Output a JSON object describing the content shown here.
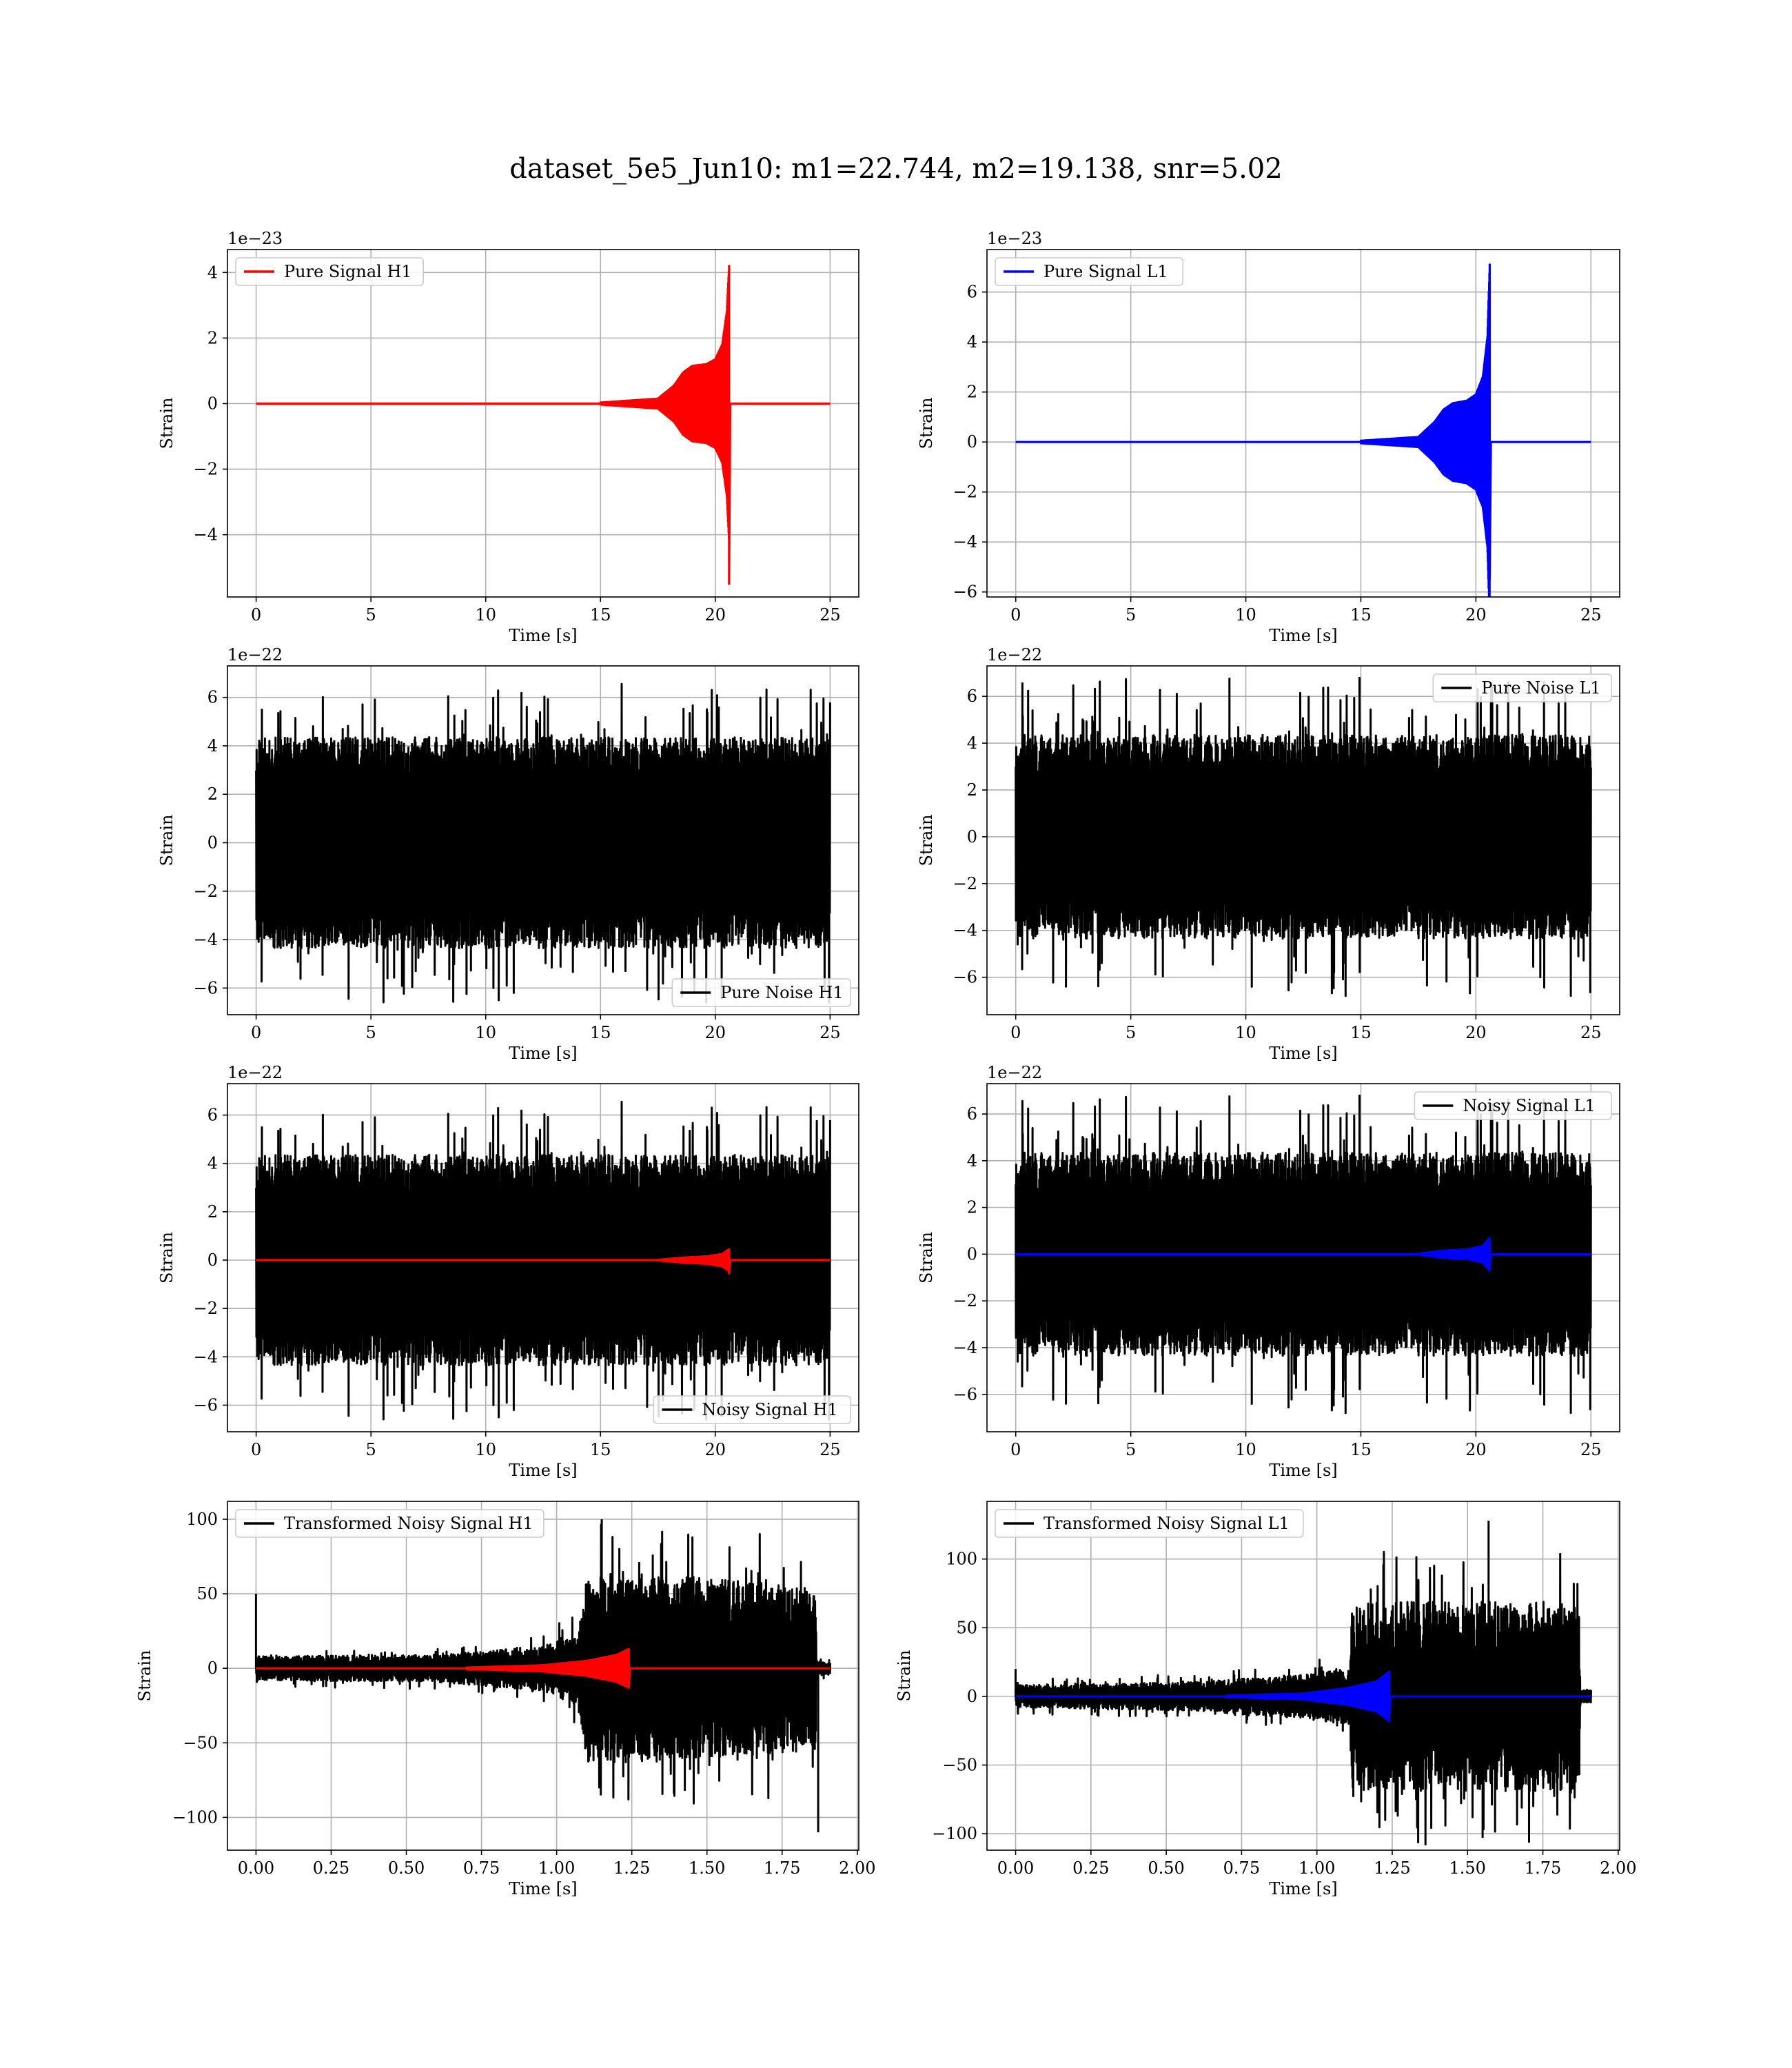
{
  "figure": {
    "suptitle": "dataset_5e5_Jun10: m1=22.744, m2=19.138, snr=5.02"
  },
  "chart_data": [
    {
      "type": "line",
      "id": "pure-signal-h1",
      "xlabel": "Time [s]",
      "ylabel": "Strain",
      "offset_label": "1e−23",
      "xlim": [
        -1.25,
        26.25
      ],
      "ylim": [
        -5.9,
        4.7
      ],
      "xticks": [
        0,
        5,
        10,
        15,
        20,
        25
      ],
      "xtick_labels": [
        "0",
        "5",
        "10",
        "15",
        "20",
        "25"
      ],
      "yticks": [
        -4,
        -2,
        0,
        2,
        4
      ],
      "ytick_labels": [
        "−4",
        "−2",
        "0",
        "2",
        "4"
      ],
      "grid": true,
      "legend_loc": "upper-left",
      "series": [
        {
          "name": "Pure Signal H1",
          "color": "#ff0000",
          "kind": "chirp",
          "x_range": [
            0,
            25
          ],
          "t_merge": 20.6,
          "envelope": [
            [
              0,
              0.0
            ],
            [
              15,
              0.03
            ],
            [
              17.5,
              0.15
            ],
            [
              18.2,
              0.55
            ],
            [
              18.6,
              0.95
            ],
            [
              19.0,
              1.15
            ],
            [
              19.6,
              1.2
            ],
            [
              20.0,
              1.35
            ],
            [
              20.3,
              1.8
            ],
            [
              20.5,
              2.8
            ],
            [
              20.6,
              4.2
            ]
          ],
          "merge_min": -5.5
        }
      ]
    },
    {
      "type": "line",
      "id": "pure-signal-l1",
      "xlabel": "Time [s]",
      "ylabel": "Strain",
      "offset_label": "1e−23",
      "xlim": [
        -1.25,
        26.25
      ],
      "ylim": [
        -6.2,
        7.7
      ],
      "xticks": [
        0,
        5,
        10,
        15,
        20,
        25
      ],
      "xtick_labels": [
        "0",
        "5",
        "10",
        "15",
        "20",
        "25"
      ],
      "yticks": [
        -6,
        -4,
        -2,
        0,
        2,
        4,
        6
      ],
      "ytick_labels": [
        "−6",
        "−4",
        "−2",
        "0",
        "2",
        "4",
        "6"
      ],
      "grid": true,
      "legend_loc": "upper-left",
      "series": [
        {
          "name": "Pure Signal L1",
          "color": "#0000ff",
          "kind": "chirp",
          "x_range": [
            0,
            25
          ],
          "t_merge": 20.6,
          "envelope": [
            [
              0,
              0.0
            ],
            [
              15,
              0.05
            ],
            [
              17.5,
              0.2
            ],
            [
              18.2,
              0.8
            ],
            [
              18.6,
              1.3
            ],
            [
              19.0,
              1.55
            ],
            [
              19.6,
              1.65
            ],
            [
              20.0,
              1.9
            ],
            [
              20.3,
              2.6
            ],
            [
              20.5,
              4.2
            ],
            [
              20.6,
              7.1
            ]
          ],
          "merge_min": -5.5
        }
      ]
    },
    {
      "type": "line",
      "id": "pure-noise-h1",
      "xlabel": "Time [s]",
      "ylabel": "Strain",
      "offset_label": "1e−22",
      "xlim": [
        -1.25,
        26.25
      ],
      "ylim": [
        -7.1,
        7.3
      ],
      "xticks": [
        0,
        5,
        10,
        15,
        20,
        25
      ],
      "xtick_labels": [
        "0",
        "5",
        "10",
        "15",
        "20",
        "25"
      ],
      "yticks": [
        -6,
        -4,
        -2,
        0,
        2,
        4,
        6
      ],
      "ytick_labels": [
        "−6",
        "−4",
        "−2",
        "0",
        "2",
        "4",
        "6"
      ],
      "grid": true,
      "legend_loc": "lower-right",
      "series": [
        {
          "name": "Pure Noise H1",
          "color": "#000000",
          "kind": "noise",
          "x_range": [
            0,
            25
          ],
          "base_amp": 3.0,
          "spike_max": 6.6,
          "seed": 11
        }
      ]
    },
    {
      "type": "line",
      "id": "pure-noise-l1",
      "xlabel": "Time [s]",
      "ylabel": "Strain",
      "offset_label": "1e−22",
      "xlim": [
        -1.25,
        26.25
      ],
      "ylim": [
        -7.6,
        7.3
      ],
      "xticks": [
        0,
        5,
        10,
        15,
        20,
        25
      ],
      "xtick_labels": [
        "0",
        "5",
        "10",
        "15",
        "20",
        "25"
      ],
      "yticks": [
        -6,
        -4,
        -2,
        0,
        2,
        4,
        6
      ],
      "ytick_labels": [
        "−6",
        "−4",
        "−2",
        "0",
        "2",
        "4",
        "6"
      ],
      "grid": true,
      "legend_loc": "upper-right",
      "series": [
        {
          "name": "Pure Noise L1",
          "color": "#000000",
          "kind": "noise",
          "x_range": [
            0,
            25
          ],
          "base_amp": 3.0,
          "spike_max": 6.8,
          "seed": 23
        }
      ]
    },
    {
      "type": "line",
      "id": "noisy-signal-h1",
      "xlabel": "Time [s]",
      "ylabel": "Strain",
      "offset_label": "1e−22",
      "xlim": [
        -1.25,
        26.25
      ],
      "ylim": [
        -7.1,
        7.3
      ],
      "xticks": [
        0,
        5,
        10,
        15,
        20,
        25
      ],
      "xtick_labels": [
        "0",
        "5",
        "10",
        "15",
        "20",
        "25"
      ],
      "yticks": [
        -6,
        -4,
        -2,
        0,
        2,
        4,
        6
      ],
      "ytick_labels": [
        "−6",
        "−4",
        "−2",
        "0",
        "2",
        "4",
        "6"
      ],
      "grid": true,
      "legend_loc": "lower-right",
      "series": [
        {
          "name": "Noisy Signal H1",
          "color": "#000000",
          "kind": "noise",
          "x_range": [
            0,
            25
          ],
          "base_amp": 3.0,
          "spike_max": 6.6,
          "seed": 11
        },
        {
          "color": "#ff0000",
          "kind": "chirp",
          "x_range": [
            0,
            25
          ],
          "t_merge": 20.6,
          "envelope": [
            [
              0,
              0.0
            ],
            [
              17.5,
              0.01
            ],
            [
              18.6,
              0.1
            ],
            [
              19.6,
              0.15
            ],
            [
              20.3,
              0.25
            ],
            [
              20.6,
              0.45
            ]
          ],
          "merge_min": -0.55
        }
      ]
    },
    {
      "type": "line",
      "id": "noisy-signal-l1",
      "xlabel": "Time [s]",
      "ylabel": "Strain",
      "offset_label": "1e−22",
      "xlim": [
        -1.25,
        26.25
      ],
      "ylim": [
        -7.6,
        7.3
      ],
      "xticks": [
        0,
        5,
        10,
        15,
        20,
        25
      ],
      "xtick_labels": [
        "0",
        "5",
        "10",
        "15",
        "20",
        "25"
      ],
      "yticks": [
        -6,
        -4,
        -2,
        0,
        2,
        4,
        6
      ],
      "ytick_labels": [
        "−6",
        "−4",
        "−2",
        "0",
        "2",
        "4",
        "6"
      ],
      "grid": true,
      "legend_loc": "upper-right",
      "series": [
        {
          "name": "Noisy Signal L1",
          "color": "#000000",
          "kind": "noise",
          "x_range": [
            0,
            25
          ],
          "base_amp": 3.0,
          "spike_max": 6.8,
          "seed": 23
        },
        {
          "color": "#0000ff",
          "kind": "chirp",
          "x_range": [
            0,
            25
          ],
          "t_merge": 20.6,
          "envelope": [
            [
              0,
              0.0
            ],
            [
              17.5,
              0.02
            ],
            [
              18.6,
              0.15
            ],
            [
              19.6,
              0.2
            ],
            [
              20.3,
              0.35
            ],
            [
              20.6,
              0.7
            ]
          ],
          "merge_min": -0.55
        }
      ]
    },
    {
      "type": "line",
      "id": "transformed-noisy-signal-h1",
      "xlabel": "Time [s]",
      "ylabel": "Strain",
      "offset_label": "",
      "xlim": [
        -0.095,
        2.005
      ],
      "ylim": [
        -122,
        112
      ],
      "xticks": [
        0,
        0.25,
        0.5,
        0.75,
        1.0,
        1.25,
        1.5,
        1.75,
        2.0
      ],
      "xtick_labels": [
        "0.00",
        "0.25",
        "0.50",
        "0.75",
        "1.00",
        "1.25",
        "1.50",
        "1.75",
        "2.00"
      ],
      "yticks": [
        -100,
        -50,
        0,
        50,
        100
      ],
      "ytick_labels": [
        "−100",
        "−50",
        "0",
        "50",
        "100"
      ],
      "grid": true,
      "legend_loc": "upper-left",
      "series": [
        {
          "name": "Transformed Noisy Signal H1",
          "color": "#000000",
          "kind": "whitened",
          "x_range": [
            0,
            1.91
          ],
          "envelope": [
            [
              0,
              7
            ],
            [
              0.6,
              8
            ],
            [
              0.95,
              13
            ],
            [
              1.07,
              22
            ],
            [
              1.1,
              55
            ],
            [
              1.3,
              55
            ],
            [
              1.86,
              48
            ],
            [
              1.865,
              4
            ],
            [
              1.91,
              4
            ]
          ],
          "spikes": [
            [
              0.0,
              50
            ],
            [
              1.15,
              100
            ],
            [
              1.87,
              -110
            ]
          ],
          "seed": 31
        },
        {
          "color": "#ff0000",
          "kind": "chirp",
          "x_range": [
            0,
            1.91
          ],
          "t_merge": 1.24,
          "envelope": [
            [
              0,
              0.0
            ],
            [
              0.7,
              0.5
            ],
            [
              0.95,
              2
            ],
            [
              1.1,
              5
            ],
            [
              1.2,
              9
            ],
            [
              1.24,
              13
            ]
          ],
          "merge_min": -13
        }
      ]
    },
    {
      "type": "line",
      "id": "transformed-noisy-signal-l1",
      "xlabel": "Time [s]",
      "ylabel": "Strain",
      "offset_label": "",
      "xlim": [
        -0.095,
        2.005
      ],
      "ylim": [
        -112,
        142
      ],
      "xticks": [
        0,
        0.25,
        0.5,
        0.75,
        1.0,
        1.25,
        1.5,
        1.75,
        2.0
      ],
      "xtick_labels": [
        "0.00",
        "0.25",
        "0.50",
        "0.75",
        "1.00",
        "1.25",
        "1.50",
        "1.75",
        "2.00"
      ],
      "yticks": [
        -100,
        -50,
        0,
        50,
        100
      ],
      "ytick_labels": [
        "−100",
        "−50",
        "0",
        "50",
        "100"
      ],
      "grid": true,
      "legend_loc": "upper-left",
      "series": [
        {
          "name": "Transformed Noisy Signal L1",
          "color": "#000000",
          "kind": "whitened",
          "x_range": [
            0,
            1.91
          ],
          "envelope": [
            [
              0,
              7
            ],
            [
              0.6,
              9
            ],
            [
              0.95,
              14
            ],
            [
              1.11,
              18
            ],
            [
              1.115,
              60
            ],
            [
              1.4,
              60
            ],
            [
              1.87,
              60
            ],
            [
              1.875,
              4
            ],
            [
              1.91,
              4
            ]
          ],
          "spikes": [
            [
              0.0,
              20
            ],
            [
              1.57,
              128
            ],
            [
              1.55,
              -103
            ]
          ],
          "seed": 47
        },
        {
          "color": "#0000ff",
          "kind": "chirp",
          "x_range": [
            0,
            1.91
          ],
          "t_merge": 1.24,
          "envelope": [
            [
              0,
              0.0
            ],
            [
              0.7,
              0.5
            ],
            [
              0.95,
              2
            ],
            [
              1.1,
              6
            ],
            [
              1.2,
              11
            ],
            [
              1.24,
              18
            ]
          ],
          "merge_min": -15
        }
      ]
    }
  ]
}
